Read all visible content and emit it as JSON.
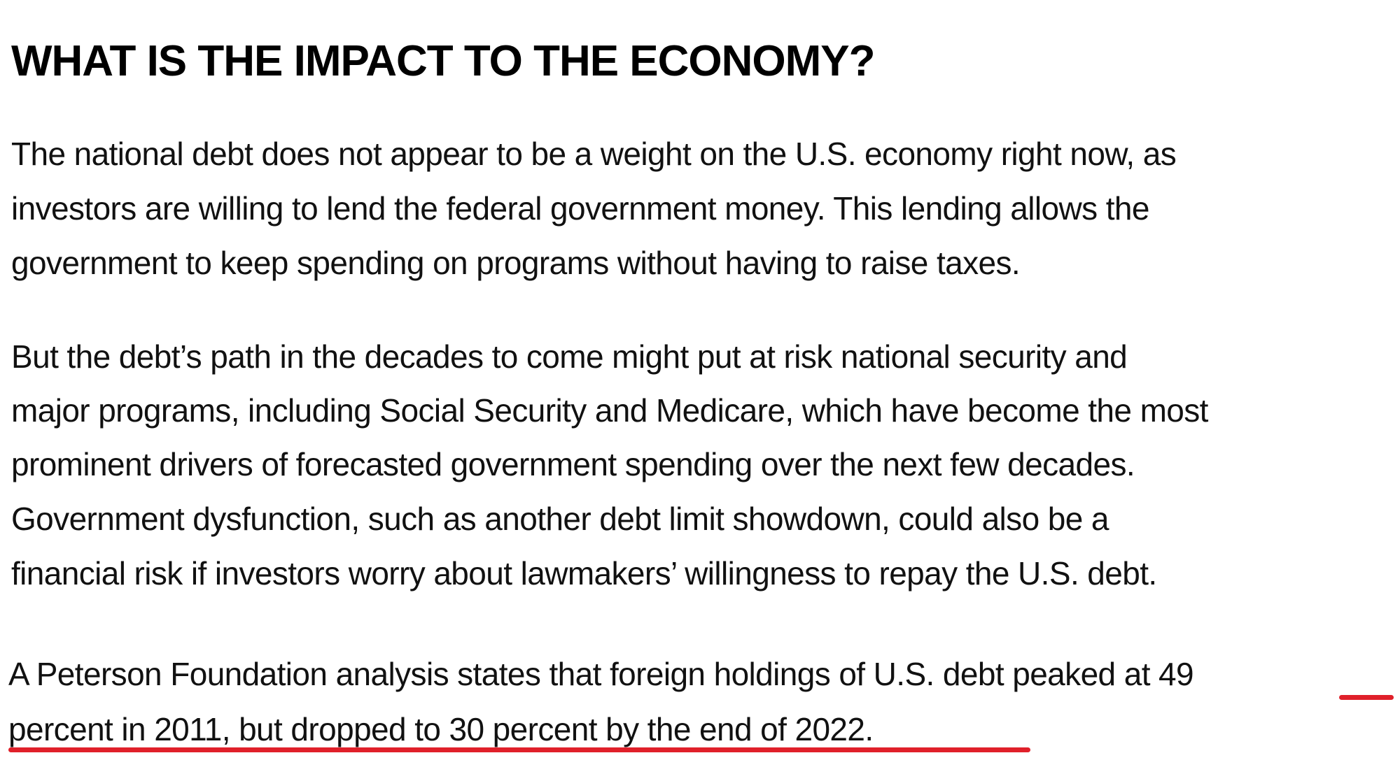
{
  "heading": "WHAT IS THE IMPACT TO THE ECONOMY?",
  "paragraphs": [
    {
      "lines": [
        "The national debt does not appear to be a weight on the U.S. economy right now, as",
        "investors are willing to lend the federal government money. This lending allows the",
        "government to keep spending on programs without having to raise taxes."
      ]
    },
    {
      "lines": [
        "But the debt’s path in the decades to come might put at risk national security and",
        "major programs, including Social Security and Medicare, which have become the most",
        "prominent drivers of forecasted government spending over the next few decades.",
        "Government dysfunction, such as another debt limit showdown, could also be a",
        "financial risk if investors worry about lawmakers’ willingness to repay the U.S. debt."
      ]
    },
    {
      "lines": [
        "A Peterson Foundation analysis states that foreign holdings of U.S. debt peaked at 49",
        "percent in 2011, but dropped to 30 percent by the end of 2022."
      ]
    }
  ],
  "annotation_color": "#e0202a"
}
